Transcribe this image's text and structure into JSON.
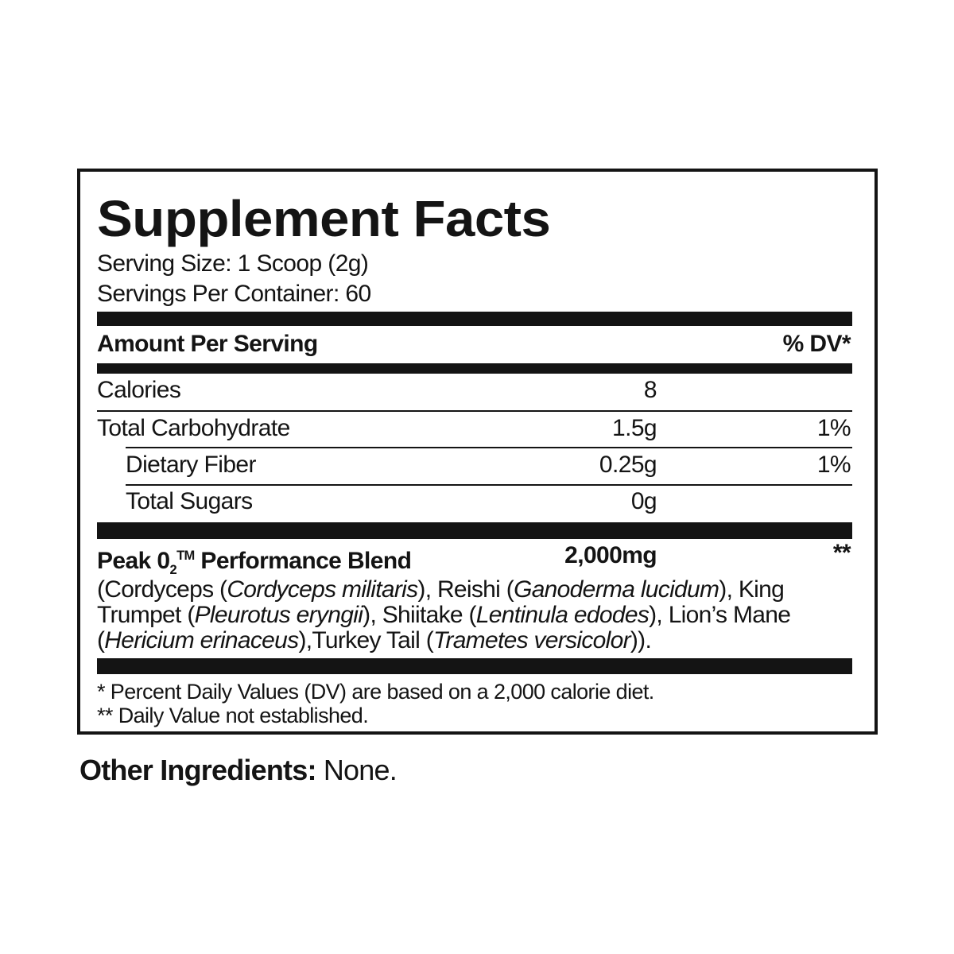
{
  "label": {
    "title": "Supplement Facts",
    "serving_size": "Serving Size: 1 Scoop (2g)",
    "servings_per_container": "Servings Per Container: 60",
    "header": {
      "amount": "Amount Per Serving",
      "dv": "% DV*"
    },
    "rows": [
      {
        "name": "Calories",
        "amount": "8",
        "dv": ""
      },
      {
        "name": "Total Carbohydrate",
        "amount": "1.5g",
        "dv": "1%"
      },
      {
        "name": "Dietary Fiber",
        "amount": "0.25g",
        "dv": "1%"
      },
      {
        "name": "Total Sugars",
        "amount": "0g",
        "dv": ""
      }
    ],
    "blend": {
      "name_prefix": "Peak 0",
      "name_sub": "2",
      "name_sup": "TM",
      "name_suffix": " Performance Blend",
      "amount": "2,000mg",
      "dv": "**"
    },
    "ingredients": [
      {
        "t": "(Cordyceps (",
        "i": false
      },
      {
        "t": "Cordyceps militaris",
        "i": true
      },
      {
        "t": "), Reishi (",
        "i": false
      },
      {
        "t": "Ganoderma lucidum",
        "i": true
      },
      {
        "t": "), King Trumpet (",
        "i": false
      },
      {
        "t": "Pleurotus eryngii",
        "i": true
      },
      {
        "t": "), Shiitake (",
        "i": false
      },
      {
        "t": "Lentinula edodes",
        "i": true
      },
      {
        "t": "), Lion’s Mane (",
        "i": false
      },
      {
        "t": "Hericium erinaceus",
        "i": true
      },
      {
        "t": "),Turkey Tail (",
        "i": false
      },
      {
        "t": "Trametes versicolor",
        "i": true
      },
      {
        "t": ")).",
        "i": false
      }
    ],
    "footnotes": [
      "* Percent Daily Values (DV) are based on a 2,000 calorie diet.",
      "** Daily Value not established."
    ]
  },
  "other_ingredients": {
    "label": "Other Ingredients:",
    "value": " None."
  }
}
